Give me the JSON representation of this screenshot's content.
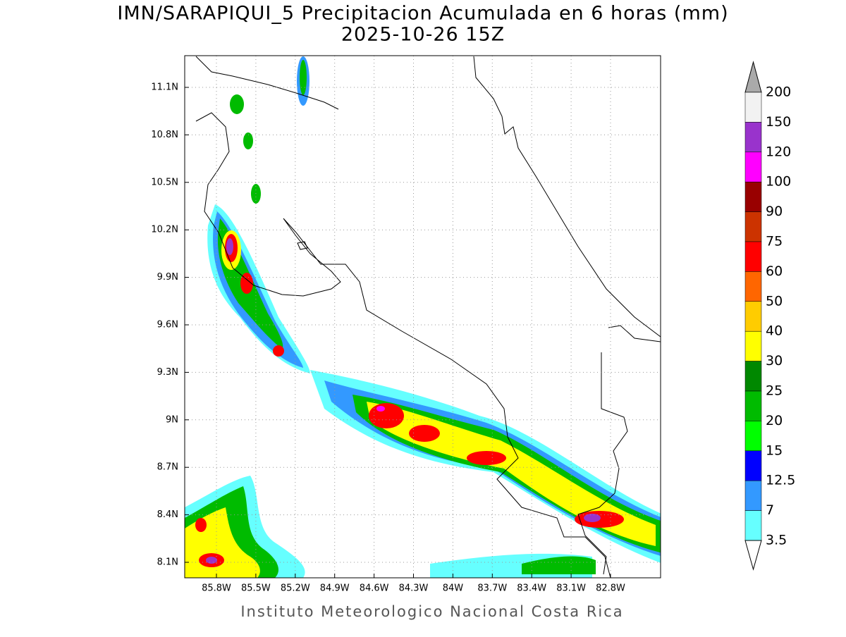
{
  "map": {
    "title": "IMN/SARAPIQUI_5 Precipitacion Acumulada en 6 horas (mm)",
    "subtitle": "2025-10-26 15Z",
    "lon_labels": [
      "85.8W",
      "85.5W",
      "85.2W",
      "84.9W",
      "84.6W",
      "84.3W",
      "84W",
      "83.7W",
      "83.4W",
      "83.1W",
      "82.8W"
    ],
    "lat_labels": [
      "11.1N",
      "10.8N",
      "10.5N",
      "10.2N",
      "9.9N",
      "9.6N",
      "9.3N",
      "9N",
      "8.7N",
      "8.4N",
      "8.1N"
    ],
    "colorbar": {
      "labels": [
        "200",
        "150",
        "120",
        "100",
        "90",
        "75",
        "60",
        "50",
        "40",
        "30",
        "25",
        "20",
        "15",
        "12.5",
        "7",
        "3.5"
      ],
      "colors": [
        "#f2f2f2",
        "#9933cc",
        "#ff00ff",
        "#990000",
        "#cc3300",
        "#ff0000",
        "#ff6600",
        "#ffcc00",
        "#ffff00",
        "#008800",
        "#00bb00",
        "#00ff00",
        "#0000ff",
        "#3399ff",
        "#66ffff"
      ],
      "over_color": "#aaaaaa",
      "under_color": "#ffffff"
    },
    "footer": "Instituto Meteorologico Nacional Costa Rica"
  }
}
